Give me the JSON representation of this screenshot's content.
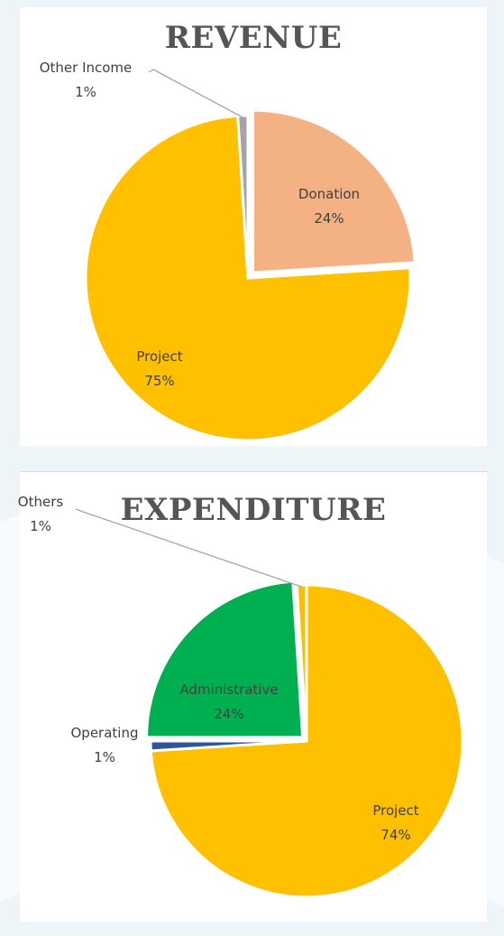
{
  "chart_data": [
    {
      "type": "pie",
      "title": "REVENUE",
      "slices": [
        {
          "label": "Donation",
          "value": 24,
          "display": "24%",
          "color": "#F4B183"
        },
        {
          "label": "Project",
          "value": 75,
          "display": "75%",
          "color": "#FFC000"
        },
        {
          "label": "Other Income",
          "value": 1,
          "display": "1%",
          "color": "#A5A5A5"
        }
      ],
      "legend": "none",
      "labels": "category and percent"
    },
    {
      "type": "pie",
      "title": "EXPENDITURE",
      "slices": [
        {
          "label": "Project",
          "value": 74,
          "display": "74%",
          "color": "#FFC000"
        },
        {
          "label": "Operating",
          "value": 1,
          "display": "1%",
          "color": "#2F5597"
        },
        {
          "label": "Administrative",
          "value": 24,
          "display": "24%",
          "color": "#00B050"
        },
        {
          "label": "Others",
          "value": 1,
          "display": "1%",
          "color": "#FFC000"
        }
      ],
      "legend": "none",
      "labels": "category and percent"
    }
  ]
}
